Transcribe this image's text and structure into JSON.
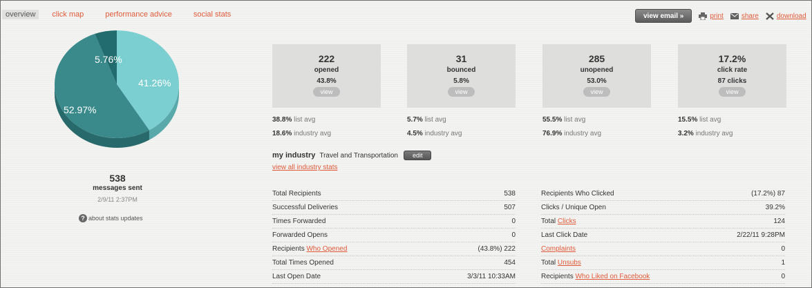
{
  "nav": {
    "tabs": [
      {
        "label": "overview",
        "active": true
      },
      {
        "label": "click map"
      },
      {
        "label": "performance advice"
      },
      {
        "label": "social stats"
      }
    ]
  },
  "actions": {
    "view_email": "view email »",
    "print": "print",
    "share": "share",
    "download": "download"
  },
  "pie": {
    "slices": [
      {
        "label": "41.26%",
        "value": 41.26,
        "color": "#7ccfd0",
        "dark": "#5aa9aa"
      },
      {
        "label": "52.97%",
        "value": 52.97,
        "color": "#3a8a8c",
        "dark": "#286a6c"
      },
      {
        "label": "5.76%",
        "value": 5.76,
        "color": "#226c6e",
        "dark": "#174f51"
      }
    ]
  },
  "summary": {
    "count": "538",
    "label": "messages sent",
    "date": "2/9/11 2:37PM",
    "about": "about stats updates"
  },
  "boxes": [
    {
      "num": "222",
      "label": "opened",
      "pct": "43.8%",
      "view": "view",
      "list_avg": "38.8%",
      "industry_avg": "18.6%"
    },
    {
      "num": "31",
      "label": "bounced",
      "pct": "5.8%",
      "view": "view",
      "list_avg": "5.7%",
      "industry_avg": "4.5%"
    },
    {
      "num": "285",
      "label": "unopened",
      "pct": "53.0%",
      "view": "view",
      "list_avg": "55.5%",
      "industry_avg": "76.9%"
    },
    {
      "num": "17.2%",
      "label": "click rate",
      "pct": "87 clicks",
      "view": "view",
      "list_avg": "15.5%",
      "industry_avg": "3.2%"
    }
  ],
  "avg_labels": {
    "list": "list avg",
    "industry": "industry avg"
  },
  "industry": {
    "heading": "my industry",
    "value": "Travel and Transportation",
    "edit": "edit",
    "view_all": "view all industry stats"
  },
  "left_stats": [
    {
      "key": "Total Recipients",
      "value": "538"
    },
    {
      "key": "Successful Deliveries",
      "value": "507"
    },
    {
      "key": "Times Forwarded",
      "value": "0"
    },
    {
      "key": "Forwarded Opens",
      "value": "0"
    },
    {
      "key_pre": "Recipients ",
      "key_link": "Who Opened",
      "value": "(43.8%) 222"
    },
    {
      "key": "Total Times Opened",
      "value": "454"
    },
    {
      "key": "Last Open Date",
      "value": "3/3/11 10:33AM"
    }
  ],
  "right_stats": [
    {
      "key": "Recipients Who Clicked",
      "value": "(17.2%) 87"
    },
    {
      "key": "Clicks / Unique Open",
      "value": "39.2%"
    },
    {
      "key_pre": "Total ",
      "key_link": "Clicks",
      "value": "124"
    },
    {
      "key": "Last Click Date",
      "value": "2/22/11 9:28PM"
    },
    {
      "key_pre": "",
      "key_link": "Complaints",
      "value": "0"
    },
    {
      "key_pre": "Total ",
      "key_link": "Unsubs",
      "value": "1"
    },
    {
      "key_pre": "Recipients ",
      "key_link": "Who Liked on Facebook",
      "value": "0"
    }
  ]
}
